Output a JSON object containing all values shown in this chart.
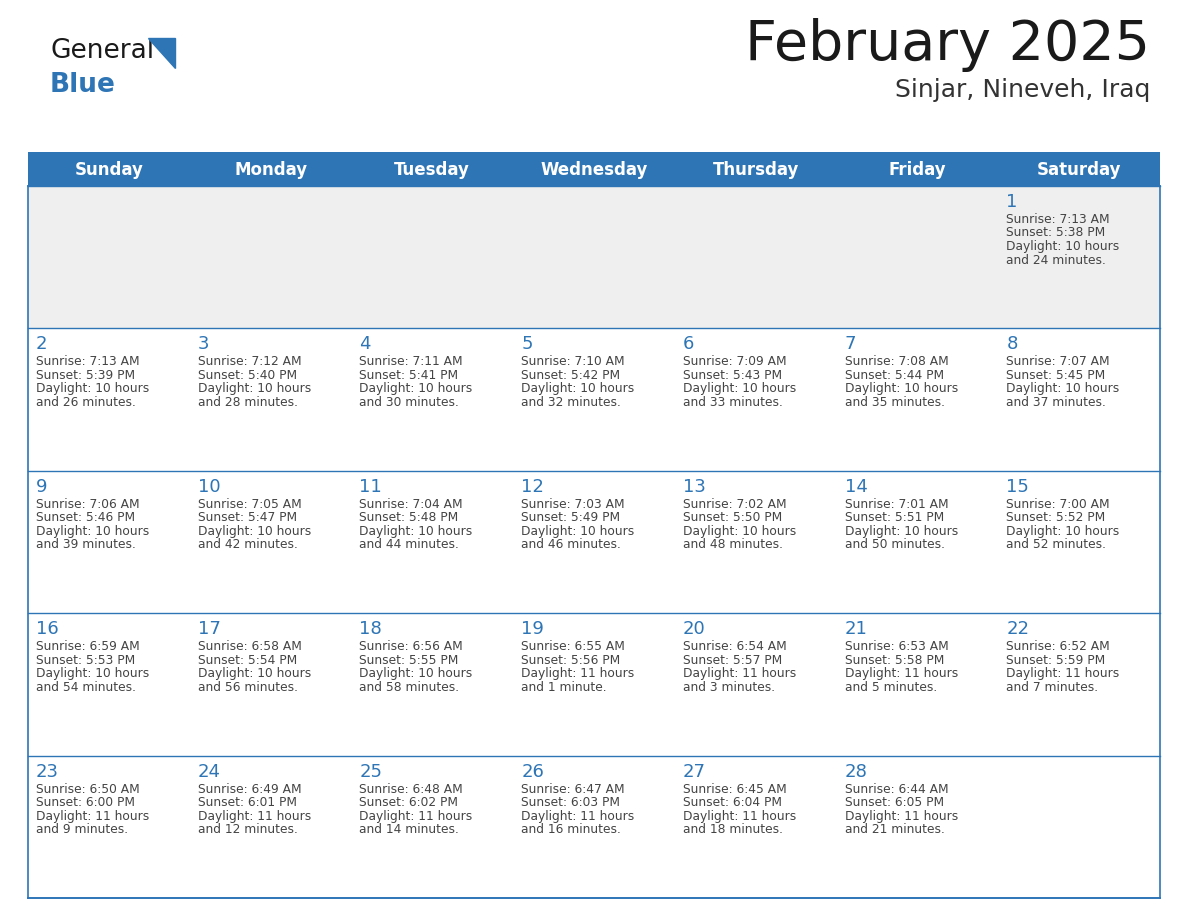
{
  "title": "February 2025",
  "subtitle": "Sinjar, Nineveh, Iraq",
  "days_of_week": [
    "Sunday",
    "Monday",
    "Tuesday",
    "Wednesday",
    "Thursday",
    "Friday",
    "Saturday"
  ],
  "header_bg": "#2E75B6",
  "header_text": "#FFFFFF",
  "cell_border": "#2E75B6",
  "day_num_color": "#2E75B6",
  "info_text_color": "#444444",
  "bg_color": "#FFFFFF",
  "row1_bg": "#EFEFEF",
  "title_color": "#1a1a1a",
  "subtitle_color": "#333333",
  "logo_general_color": "#1a1a1a",
  "logo_blue_color": "#2E75B6",
  "calendar": [
    [
      null,
      null,
      null,
      null,
      null,
      null,
      1
    ],
    [
      2,
      3,
      4,
      5,
      6,
      7,
      8
    ],
    [
      9,
      10,
      11,
      12,
      13,
      14,
      15
    ],
    [
      16,
      17,
      18,
      19,
      20,
      21,
      22
    ],
    [
      23,
      24,
      25,
      26,
      27,
      28,
      null
    ]
  ],
  "cell_data": {
    "1": {
      "sunrise": "7:13 AM",
      "sunset": "5:38 PM",
      "daylight_line1": "Daylight: 10 hours",
      "daylight_line2": "and 24 minutes."
    },
    "2": {
      "sunrise": "7:13 AM",
      "sunset": "5:39 PM",
      "daylight_line1": "Daylight: 10 hours",
      "daylight_line2": "and 26 minutes."
    },
    "3": {
      "sunrise": "7:12 AM",
      "sunset": "5:40 PM",
      "daylight_line1": "Daylight: 10 hours",
      "daylight_line2": "and 28 minutes."
    },
    "4": {
      "sunrise": "7:11 AM",
      "sunset": "5:41 PM",
      "daylight_line1": "Daylight: 10 hours",
      "daylight_line2": "and 30 minutes."
    },
    "5": {
      "sunrise": "7:10 AM",
      "sunset": "5:42 PM",
      "daylight_line1": "Daylight: 10 hours",
      "daylight_line2": "and 32 minutes."
    },
    "6": {
      "sunrise": "7:09 AM",
      "sunset": "5:43 PM",
      "daylight_line1": "Daylight: 10 hours",
      "daylight_line2": "and 33 minutes."
    },
    "7": {
      "sunrise": "7:08 AM",
      "sunset": "5:44 PM",
      "daylight_line1": "Daylight: 10 hours",
      "daylight_line2": "and 35 minutes."
    },
    "8": {
      "sunrise": "7:07 AM",
      "sunset": "5:45 PM",
      "daylight_line1": "Daylight: 10 hours",
      "daylight_line2": "and 37 minutes."
    },
    "9": {
      "sunrise": "7:06 AM",
      "sunset": "5:46 PM",
      "daylight_line1": "Daylight: 10 hours",
      "daylight_line2": "and 39 minutes."
    },
    "10": {
      "sunrise": "7:05 AM",
      "sunset": "5:47 PM",
      "daylight_line1": "Daylight: 10 hours",
      "daylight_line2": "and 42 minutes."
    },
    "11": {
      "sunrise": "7:04 AM",
      "sunset": "5:48 PM",
      "daylight_line1": "Daylight: 10 hours",
      "daylight_line2": "and 44 minutes."
    },
    "12": {
      "sunrise": "7:03 AM",
      "sunset": "5:49 PM",
      "daylight_line1": "Daylight: 10 hours",
      "daylight_line2": "and 46 minutes."
    },
    "13": {
      "sunrise": "7:02 AM",
      "sunset": "5:50 PM",
      "daylight_line1": "Daylight: 10 hours",
      "daylight_line2": "and 48 minutes."
    },
    "14": {
      "sunrise": "7:01 AM",
      "sunset": "5:51 PM",
      "daylight_line1": "Daylight: 10 hours",
      "daylight_line2": "and 50 minutes."
    },
    "15": {
      "sunrise": "7:00 AM",
      "sunset": "5:52 PM",
      "daylight_line1": "Daylight: 10 hours",
      "daylight_line2": "and 52 minutes."
    },
    "16": {
      "sunrise": "6:59 AM",
      "sunset": "5:53 PM",
      "daylight_line1": "Daylight: 10 hours",
      "daylight_line2": "and 54 minutes."
    },
    "17": {
      "sunrise": "6:58 AM",
      "sunset": "5:54 PM",
      "daylight_line1": "Daylight: 10 hours",
      "daylight_line2": "and 56 minutes."
    },
    "18": {
      "sunrise": "6:56 AM",
      "sunset": "5:55 PM",
      "daylight_line1": "Daylight: 10 hours",
      "daylight_line2": "and 58 minutes."
    },
    "19": {
      "sunrise": "6:55 AM",
      "sunset": "5:56 PM",
      "daylight_line1": "Daylight: 11 hours",
      "daylight_line2": "and 1 minute."
    },
    "20": {
      "sunrise": "6:54 AM",
      "sunset": "5:57 PM",
      "daylight_line1": "Daylight: 11 hours",
      "daylight_line2": "and 3 minutes."
    },
    "21": {
      "sunrise": "6:53 AM",
      "sunset": "5:58 PM",
      "daylight_line1": "Daylight: 11 hours",
      "daylight_line2": "and 5 minutes."
    },
    "22": {
      "sunrise": "6:52 AM",
      "sunset": "5:59 PM",
      "daylight_line1": "Daylight: 11 hours",
      "daylight_line2": "and 7 minutes."
    },
    "23": {
      "sunrise": "6:50 AM",
      "sunset": "6:00 PM",
      "daylight_line1": "Daylight: 11 hours",
      "daylight_line2": "and 9 minutes."
    },
    "24": {
      "sunrise": "6:49 AM",
      "sunset": "6:01 PM",
      "daylight_line1": "Daylight: 11 hours",
      "daylight_line2": "and 12 minutes."
    },
    "25": {
      "sunrise": "6:48 AM",
      "sunset": "6:02 PM",
      "daylight_line1": "Daylight: 11 hours",
      "daylight_line2": "and 14 minutes."
    },
    "26": {
      "sunrise": "6:47 AM",
      "sunset": "6:03 PM",
      "daylight_line1": "Daylight: 11 hours",
      "daylight_line2": "and 16 minutes."
    },
    "27": {
      "sunrise": "6:45 AM",
      "sunset": "6:04 PM",
      "daylight_line1": "Daylight: 11 hours",
      "daylight_line2": "and 18 minutes."
    },
    "28": {
      "sunrise": "6:44 AM",
      "sunset": "6:05 PM",
      "daylight_line1": "Daylight: 11 hours",
      "daylight_line2": "and 21 minutes."
    }
  }
}
